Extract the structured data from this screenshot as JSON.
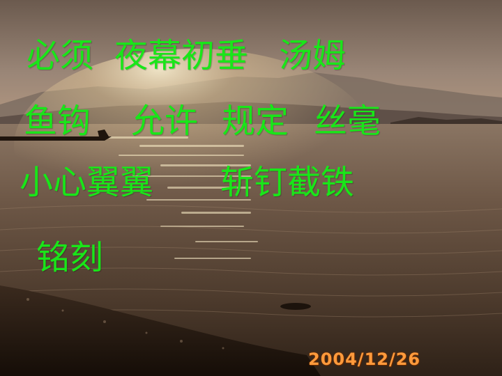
{
  "slide": {
    "rows": [
      [
        "必须",
        "夜幕初垂",
        "汤姆"
      ],
      [
        "鱼钩",
        "允许",
        "规定",
        "丝毫"
      ],
      [
        "小心翼翼",
        "斩钉截铁"
      ],
      [
        "铭刻"
      ]
    ],
    "date_stamp": "2004/12/26",
    "text_color": "#19e619",
    "date_color": "#ff9a3c"
  }
}
